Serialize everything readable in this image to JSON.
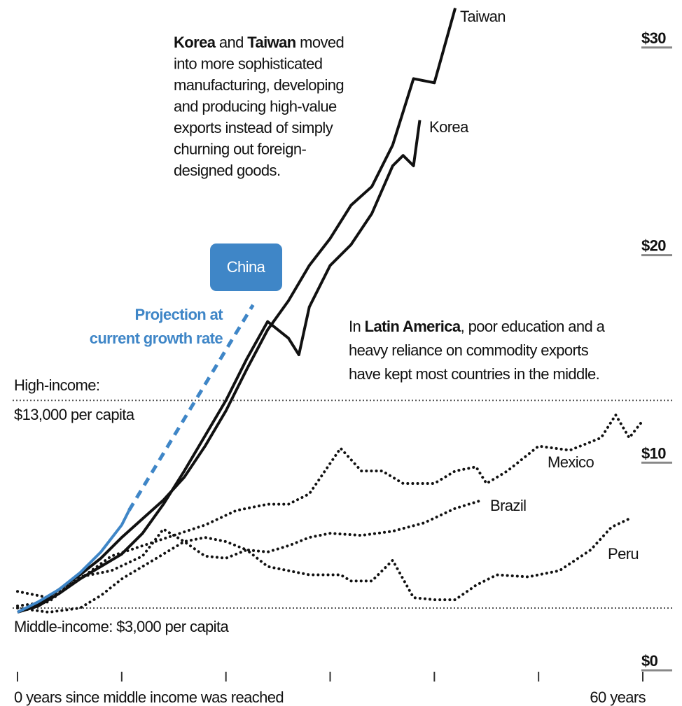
{
  "chart_data": {
    "type": "line",
    "xlim": [
      0,
      60
    ],
    "ylim": [
      0,
      32
    ],
    "xticks": [
      {
        "value": 0,
        "label": "0 years since middle income was reached"
      },
      {
        "value": 10,
        "label": null
      },
      {
        "value": 20,
        "label": null
      },
      {
        "value": 30,
        "label": null
      },
      {
        "value": 40,
        "label": null
      },
      {
        "value": 50,
        "label": null
      },
      {
        "value": 60,
        "label": "60 years"
      }
    ],
    "yticks": [
      {
        "value": 0,
        "label": "$0"
      },
      {
        "value": 10,
        "label": "$10"
      },
      {
        "value": 20,
        "label": "$20"
      },
      {
        "value": 30,
        "label": "$30"
      }
    ],
    "reference_lines": [
      {
        "value": 13,
        "label": [
          "High-income:",
          "$13,000 per capita"
        ]
      },
      {
        "value": 3,
        "label": [
          "Middle-income: $3,000 per capita"
        ]
      }
    ],
    "series": [
      {
        "name": "Taiwan",
        "color": "#111111",
        "style": "solid",
        "x": [
          0,
          2,
          4,
          6,
          8,
          10,
          12,
          14,
          16,
          18,
          20,
          22,
          24,
          26,
          28,
          30,
          32,
          34,
          36,
          38,
          40,
          42
        ],
        "values": [
          2.8,
          3.2,
          3.9,
          4.6,
          5.4,
          6.4,
          7.3,
          8.2,
          9.3,
          10.8,
          12.5,
          14.5,
          16.4,
          17.8,
          19.5,
          20.8,
          22.4,
          23.3,
          25.3,
          28.5,
          28.3,
          31.9
        ]
      },
      {
        "name": "Korea",
        "color": "#111111",
        "style": "solid",
        "x": [
          0,
          2,
          4,
          6,
          8,
          10,
          12,
          14,
          16,
          18,
          20,
          22,
          24,
          26,
          27,
          28,
          30,
          32,
          34,
          36,
          37,
          38,
          38.6
        ],
        "values": [
          2.8,
          3.1,
          3.7,
          4.4,
          5.0,
          5.6,
          6.6,
          8.0,
          9.6,
          11.3,
          13.0,
          15.0,
          16.8,
          16.0,
          15.2,
          17.5,
          19.5,
          20.5,
          22.0,
          24.3,
          24.8,
          24.3,
          26.5
        ]
      },
      {
        "name": "Mexico",
        "color": "#111111",
        "style": "dotted",
        "x": [
          0,
          3,
          6,
          9,
          12,
          15,
          18,
          21,
          24,
          26,
          28,
          31,
          33,
          35,
          37,
          40,
          42,
          44,
          45,
          47,
          50,
          53,
          56,
          57.4,
          58.7,
          59.8
        ],
        "values": [
          3.8,
          3.5,
          4.4,
          5.5,
          6.0,
          6.5,
          7.0,
          7.7,
          8.0,
          8.0,
          8.5,
          10.7,
          9.6,
          9.6,
          9.0,
          9.0,
          9.6,
          9.8,
          9.0,
          9.6,
          10.8,
          10.6,
          11.2,
          12.3,
          11.2,
          11.9
        ]
      },
      {
        "name": "Brazil",
        "color": "#111111",
        "style": "dotted",
        "x": [
          0,
          3,
          6,
          8,
          10,
          12,
          14,
          16,
          18,
          20,
          22,
          24,
          26,
          28,
          30,
          33,
          36,
          39,
          42,
          44.6
        ],
        "values": [
          3.0,
          2.8,
          3.0,
          3.6,
          4.4,
          5.0,
          5.6,
          6.2,
          6.4,
          6.2,
          5.8,
          5.7,
          6.0,
          6.4,
          6.6,
          6.5,
          6.7,
          7.1,
          7.8,
          8.2
        ]
      },
      {
        "name": "Peru",
        "color": "#111111",
        "style": "dotted",
        "x": [
          0,
          3,
          6,
          9,
          12,
          14,
          16,
          18,
          20,
          22,
          24,
          26,
          28,
          31,
          32,
          34,
          36,
          38,
          40,
          42,
          44,
          46,
          49,
          52,
          55,
          57,
          58.7
        ],
        "values": [
          3.1,
          3.3,
          4.5,
          4.8,
          5.5,
          6.8,
          6.2,
          5.5,
          5.4,
          5.8,
          5.0,
          4.8,
          4.6,
          4.6,
          4.3,
          4.3,
          5.3,
          3.5,
          3.4,
          3.4,
          4.1,
          4.6,
          4.5,
          4.8,
          5.8,
          6.9,
          7.3
        ]
      },
      {
        "name": "China",
        "color": "#3f86c7",
        "style": "solid",
        "x": [
          0,
          2,
          4,
          6,
          8,
          10,
          10.7
        ],
        "values": [
          2.8,
          3.3,
          3.9,
          4.7,
          5.7,
          7.0,
          7.7
        ]
      },
      {
        "name": "Projection at current growth rate",
        "color": "#3f86c7",
        "style": "dashed",
        "x": [
          10.7,
          22.6
        ],
        "values": [
          7.7,
          17.6
        ]
      }
    ],
    "china_label": "China",
    "projection_label": [
      "Projection at",
      "current growth rate"
    ],
    "annotations": [
      {
        "lines": [
          [
            {
              "text": "Korea",
              "bold": true
            },
            {
              "text": " and ",
              "bold": false
            },
            {
              "text": "Taiwan",
              "bold": true
            },
            {
              "text": " moved",
              "bold": false
            }
          ],
          [
            {
              "text": "into more sophisticated",
              "bold": false
            }
          ],
          [
            {
              "text": "manufacturing, developing",
              "bold": false
            }
          ],
          [
            {
              "text": "and producing high-value",
              "bold": false
            }
          ],
          [
            {
              "text": "exports instead of simply",
              "bold": false
            }
          ],
          [
            {
              "text": "churning out foreign-",
              "bold": false
            }
          ],
          [
            {
              "text": "designed goods.",
              "bold": false
            }
          ]
        ]
      },
      {
        "lines": [
          [
            {
              "text": "In ",
              "bold": false
            },
            {
              "text": "Latin America",
              "bold": true
            },
            {
              "text": ", poor education and a",
              "bold": false
            }
          ],
          [
            {
              "text": "heavy reliance on commodity exports",
              "bold": false
            }
          ],
          [
            {
              "text": "have kept most countries in the middle.",
              "bold": false
            }
          ]
        ]
      }
    ]
  }
}
